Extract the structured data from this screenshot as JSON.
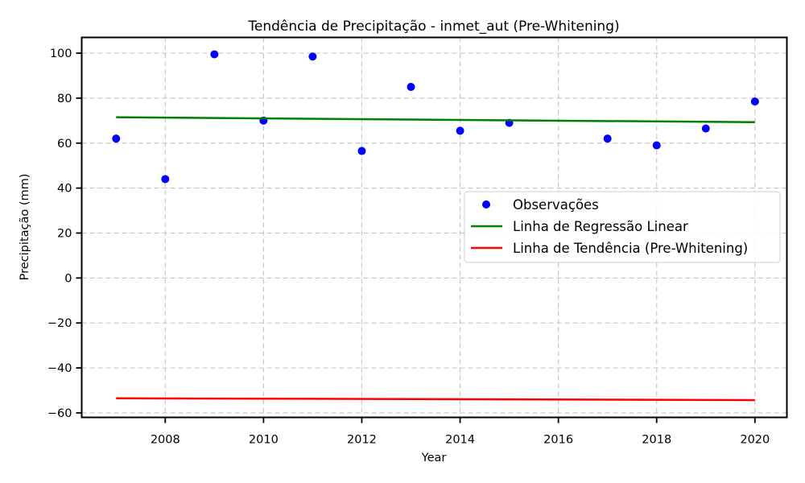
{
  "chart_data": {
    "type": "scatter",
    "title": "Tendência de Precipitação - inmet_aut (Pre-Whitening)",
    "xlabel": "Year",
    "ylabel": "Precipitação (mm)",
    "xlim": [
      2006.3,
      2020.65
    ],
    "ylim": [
      -62,
      107
    ],
    "xticks": [
      2008,
      2010,
      2012,
      2014,
      2016,
      2018,
      2020
    ],
    "yticks": [
      -60,
      -40,
      -20,
      0,
      20,
      40,
      60,
      80,
      100
    ],
    "grid": true,
    "legend_position": "center-right",
    "series": [
      {
        "name": "Observações",
        "kind": "scatter",
        "color": "#0000ff",
        "points": [
          {
            "x": 2007,
            "y": 62
          },
          {
            "x": 2008,
            "y": 44
          },
          {
            "x": 2009,
            "y": 99.5
          },
          {
            "x": 2010,
            "y": 70
          },
          {
            "x": 2011,
            "y": 98.5
          },
          {
            "x": 2012,
            "y": 56.5
          },
          {
            "x": 2013,
            "y": 85
          },
          {
            "x": 2014,
            "y": 65.5
          },
          {
            "x": 2015,
            "y": 69
          },
          {
            "x": 2017,
            "y": 62
          },
          {
            "x": 2018,
            "y": 59
          },
          {
            "x": 2019,
            "y": 66.5
          },
          {
            "x": 2020,
            "y": 78.5
          }
        ]
      },
      {
        "name": "Linha de Regressão Linear",
        "kind": "line",
        "color": "#008000",
        "points": [
          {
            "x": 2007,
            "y": 71.5
          },
          {
            "x": 2020,
            "y": 69.3
          }
        ]
      },
      {
        "name": "Linha de Tendência (Pre-Whitening)",
        "kind": "line",
        "color": "#ff0000",
        "points": [
          {
            "x": 2007,
            "y": -53.5
          },
          {
            "x": 2020,
            "y": -54.3
          }
        ]
      }
    ]
  }
}
